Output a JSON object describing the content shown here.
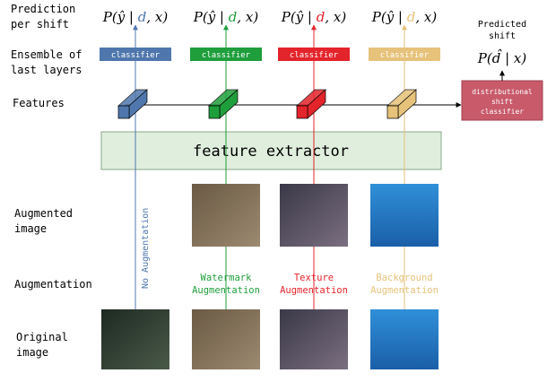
{
  "labels": {
    "prediction": [
      "Prediction",
      "per shift"
    ],
    "ensemble": [
      "Ensemble of",
      "last layers"
    ],
    "features": "Features",
    "augmented": [
      "Augmented",
      "image"
    ],
    "augmentation": "Augmentation",
    "original": [
      "Original",
      "image"
    ]
  },
  "columns": [
    {
      "formula": {
        "prefix": "P(ŷ | ",
        "shift": "d",
        "suffix": ", x)"
      },
      "classifier": "classifier",
      "augmentation": [
        "No Augmentation"
      ],
      "color": "#4f77ad"
    },
    {
      "formula": {
        "prefix": "P(ŷ | ",
        "shift": "d",
        "suffix": ", x)"
      },
      "classifier": "classifier",
      "augmentation": [
        "Watermark",
        "Augmentation"
      ],
      "color": "#1f9e3c"
    },
    {
      "formula": {
        "prefix": "P(ŷ | ",
        "shift": "d",
        "suffix": ", x)"
      },
      "classifier": "classifier",
      "augmentation": [
        "Texture",
        "Augmentation"
      ],
      "color": "#e3242b"
    },
    {
      "formula": {
        "prefix": "P(ŷ | ",
        "shift": "d",
        "suffix": ", x)"
      },
      "classifier": "classifier",
      "augmentation": [
        "Background",
        "Augmentation"
      ],
      "color": "#e6c27a"
    }
  ],
  "feature_extractor": "feature extractor",
  "predicted_shift": {
    "label": [
      "Predicted",
      "shift"
    ],
    "formula": "P(d̂ | x)"
  },
  "shift_classifier": [
    "distributional",
    "shift",
    "classifier"
  ]
}
